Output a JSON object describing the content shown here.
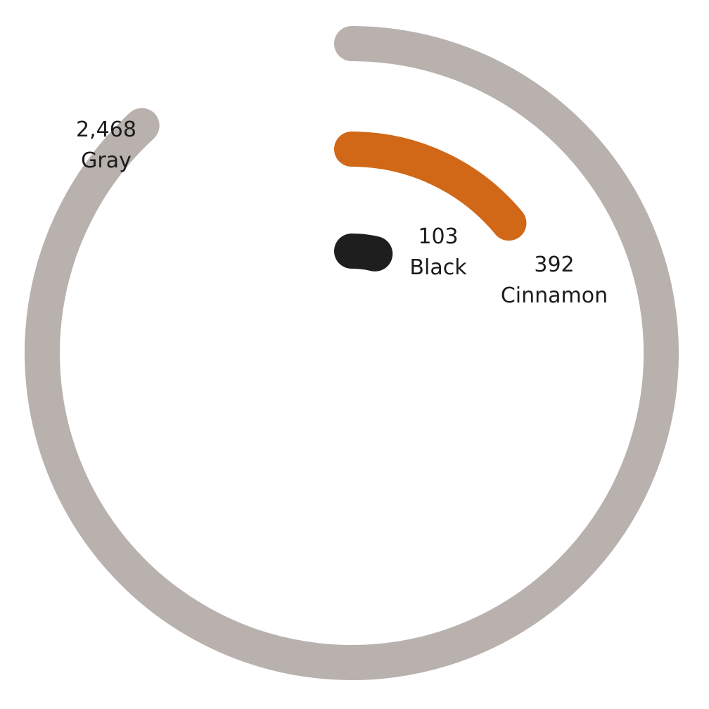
{
  "chart_data": {
    "type": "radial-bar",
    "series": [
      {
        "name": "Gray",
        "value": 2468,
        "value_label": "2,468",
        "color": "#b8b1ae"
      },
      {
        "name": "Cinnamon",
        "value": 392,
        "value_label": "392",
        "color": "#d06818"
      },
      {
        "name": "Black",
        "value": 103,
        "value_label": "103",
        "color": "#1e1e1e"
      }
    ],
    "max": 2800
  }
}
